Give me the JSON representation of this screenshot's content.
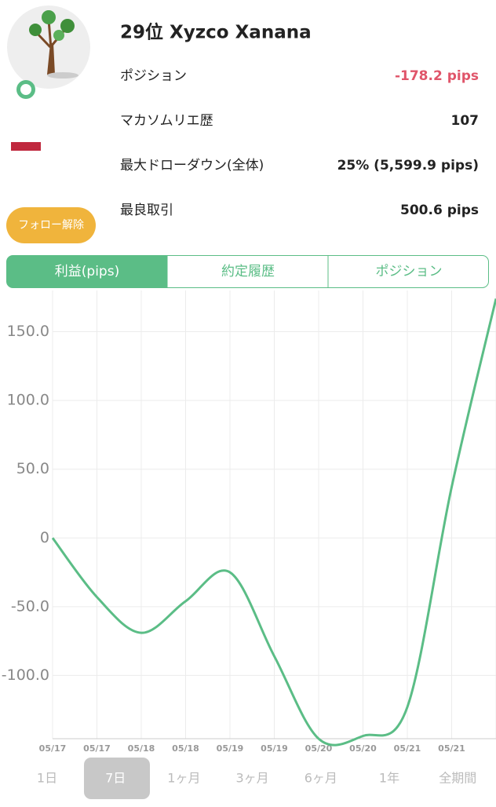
{
  "profile": {
    "title": "29位 Xyzco Xanana",
    "stats": [
      {
        "label": "ポジション",
        "value": "-178.2 pips"
      },
      {
        "label": "マカソムリエ歴",
        "value": "107"
      },
      {
        "label": "最大ドローダウン(全体)",
        "value": "25% (5,599.9 pips)"
      },
      {
        "label": "最良取引",
        "value": "500.6 pips"
      }
    ],
    "button": "フォロー解除"
  },
  "tabs": [
    "利益(pips)",
    "約定履歴",
    "ポジション"
  ],
  "chart_data": {
    "type": "line",
    "categories": [
      "05/17",
      "05/17",
      "05/18",
      "05/18",
      "05/19",
      "05/19",
      "05/20",
      "05/20",
      "05/21",
      "05/21",
      null
    ],
    "values": [
      0,
      -43,
      -69,
      -46,
      -25,
      -86,
      -146,
      -144,
      -123,
      37,
      174
    ],
    "color": "#5bbd86",
    "ylim": [
      -146,
      180
    ],
    "yticks": [
      {
        "value": 150,
        "label": "150.0"
      },
      {
        "value": 100,
        "label": "100.0"
      },
      {
        "value": 50,
        "label": "50.0"
      },
      0,
      {
        "value": -50,
        "label": "-50.0"
      },
      {
        "value": -100,
        "label": "-100.0"
      }
    ],
    "grid": true
  },
  "periods": [
    "1日",
    "7日",
    "1ヶ月",
    "3ヶ月",
    "6ヶ月",
    "1年",
    "全期間"
  ]
}
